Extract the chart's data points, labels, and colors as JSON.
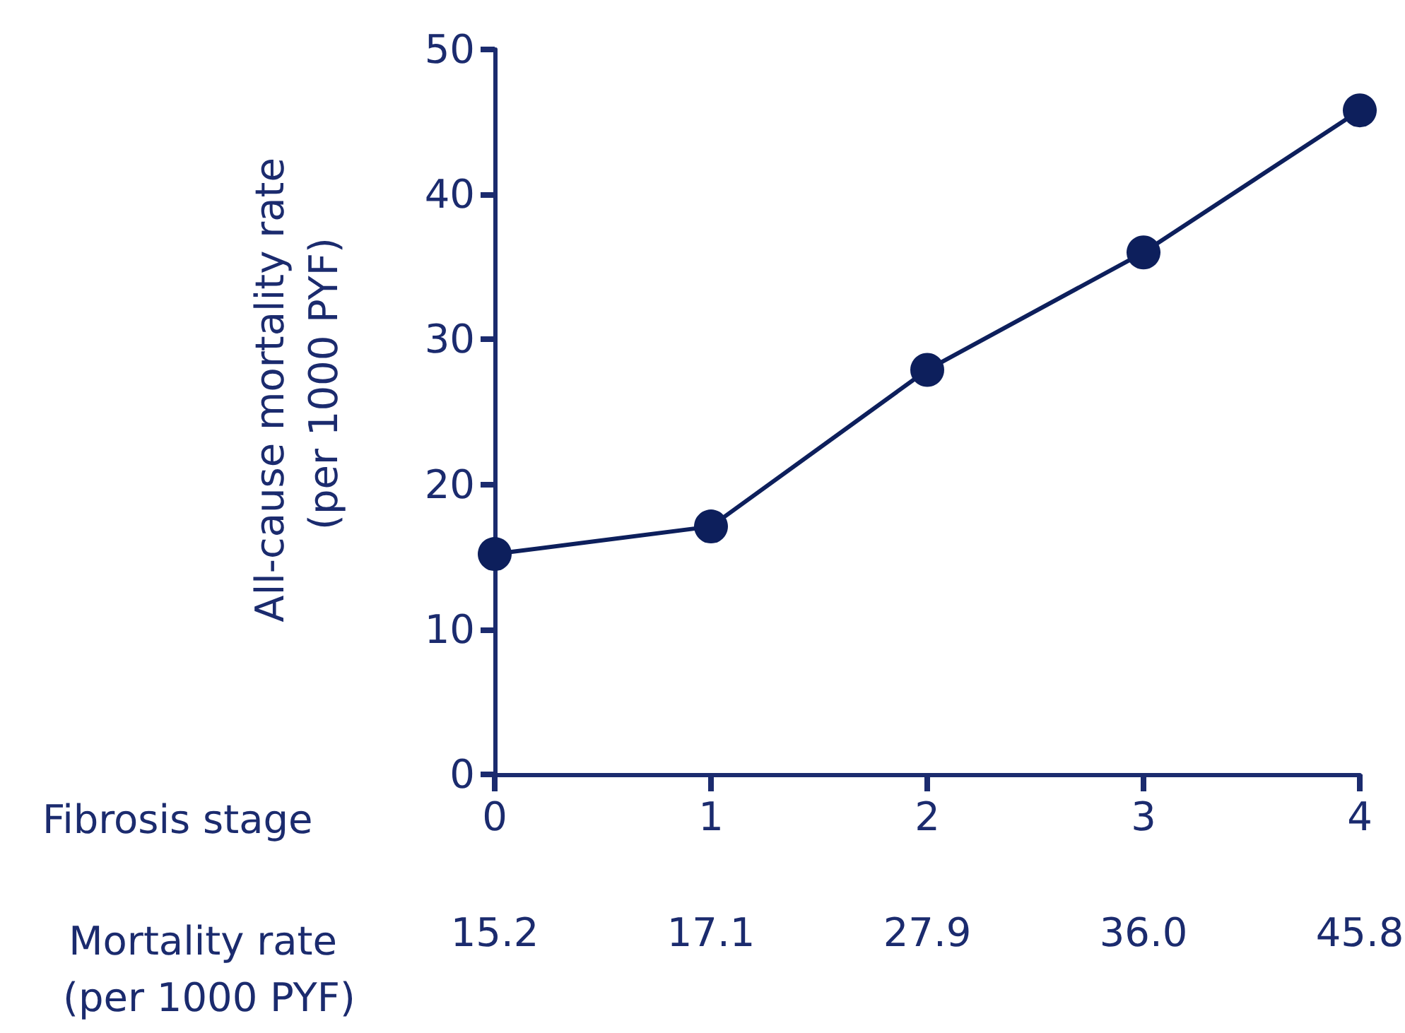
{
  "chart_data": {
    "type": "line",
    "xlabel": "Fibrosis stage",
    "ylabel": "All-cause mortality rate (per 1000 PYF)",
    "categories": [
      "0",
      "1",
      "2",
      "3",
      "4"
    ],
    "series": [
      {
        "color": "#0d1f5c",
        "values": [
          15.2,
          17.1,
          27.9,
          36.0,
          45.8
        ],
        "value_labels": [
          "15.2",
          "17.1",
          "27.9",
          "36.0",
          "45.8"
        ]
      }
    ],
    "annotations": [
      "Mortality rate (per 1000 PYF)"
    ],
    "ylim": [
      0,
      50
    ],
    "yticks": [
      0,
      10,
      20,
      30,
      40,
      50
    ],
    "marker": "circle",
    "line_style": "solid",
    "grid": false
  }
}
